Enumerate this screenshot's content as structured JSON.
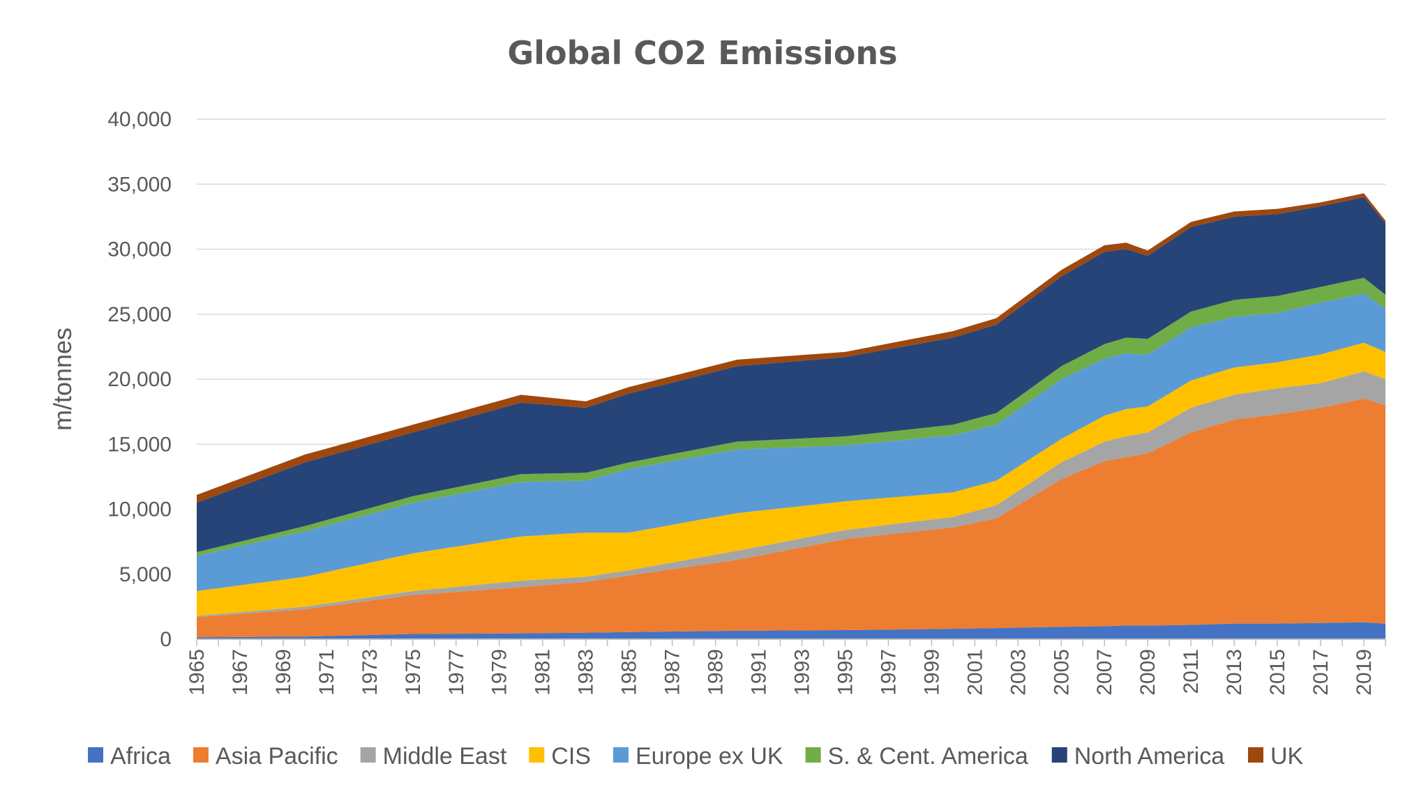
{
  "chart_data": {
    "type": "area",
    "stacked": true,
    "title": "Global CO2 Emissions",
    "ylabel": "m/tonnes",
    "xlabel": "",
    "ylim": [
      0,
      40000
    ],
    "yticks": [
      0,
      5000,
      10000,
      15000,
      20000,
      25000,
      30000,
      35000,
      40000
    ],
    "ytick_labels": [
      "0",
      "5,000",
      "10,000",
      "15,000",
      "20,000",
      "25,000",
      "30,000",
      "35,000",
      "40,000"
    ],
    "x_start": 1965,
    "x_end": 2020,
    "x_tick_labels": [
      "1965",
      "1967",
      "1969",
      "1971",
      "1973",
      "1975",
      "1977",
      "1979",
      "1981",
      "1983",
      "1985",
      "1987",
      "1989",
      "1991",
      "1993",
      "1995",
      "1997",
      "1999",
      "2001",
      "2003",
      "2005",
      "2007",
      "2009",
      "2011",
      "2013",
      "2015",
      "2017",
      "2019"
    ],
    "grid": true,
    "legend_position": "bottom",
    "series": [
      {
        "name": "Africa",
        "color": "#4472C4"
      },
      {
        "name": "Asia Pacific",
        "color": "#ED7D31"
      },
      {
        "name": "Middle East",
        "color": "#A5A5A5"
      },
      {
        "name": "CIS",
        "color": "#FFC000"
      },
      {
        "name": "Europe ex UK",
        "color": "#5B9BD5"
      },
      {
        "name": "S. & Cent. America",
        "color": "#70AD47"
      },
      {
        "name": "North America",
        "color": "#264478"
      },
      {
        "name": "UK",
        "color": "#9E480E"
      }
    ],
    "keypoints": {
      "x": [
        1965,
        1970,
        1975,
        1980,
        1983,
        1985,
        1990,
        1995,
        2000,
        2002,
        2005,
        2007,
        2008,
        2009,
        2011,
        2013,
        2015,
        2017,
        2019,
        2020
      ],
      "cumulative": [
        [
          150,
          200,
          400,
          450,
          500,
          550,
          650,
          700,
          800,
          850,
          950,
          1000,
          1050,
          1050,
          1100,
          1200,
          1200,
          1250,
          1300,
          1200
        ],
        [
          1700,
          2300,
          3400,
          4000,
          4400,
          4900,
          6100,
          7700,
          8600,
          9300,
          12300,
          13700,
          14000,
          14300,
          15900,
          16900,
          17300,
          17800,
          18500,
          18000
        ],
        [
          1800,
          2500,
          3700,
          4500,
          4800,
          5300,
          6800,
          8400,
          9400,
          10300,
          13600,
          15200,
          15600,
          15900,
          17800,
          18800,
          19300,
          19700,
          20600,
          20000
        ],
        [
          3700,
          4800,
          6600,
          7900,
          8200,
          8200,
          9700,
          10600,
          11300,
          12200,
          15400,
          17200,
          17700,
          17900,
          19900,
          20900,
          21300,
          21900,
          22800,
          22100
        ],
        [
          6400,
          8300,
          10500,
          12100,
          12200,
          13100,
          14600,
          14900,
          15700,
          16500,
          20000,
          21600,
          22000,
          21900,
          24000,
          24800,
          25100,
          25900,
          26600,
          25400
        ],
        [
          6700,
          8700,
          11000,
          12700,
          12800,
          13600,
          15200,
          15600,
          16500,
          17400,
          21000,
          22700,
          23200,
          23100,
          25200,
          26100,
          26400,
          27100,
          27800,
          26500
        ],
        [
          10500,
          13600,
          15900,
          18200,
          17800,
          18900,
          21000,
          21700,
          23200,
          24200,
          27900,
          29800,
          30000,
          29500,
          31700,
          32500,
          32700,
          33300,
          34000,
          32000
        ],
        [
          11100,
          14200,
          16500,
          18800,
          18300,
          19400,
          21500,
          22100,
          23700,
          24700,
          28400,
          30300,
          30500,
          29900,
          32100,
          32900,
          33100,
          33600,
          34300,
          32200
        ]
      ]
    }
  }
}
